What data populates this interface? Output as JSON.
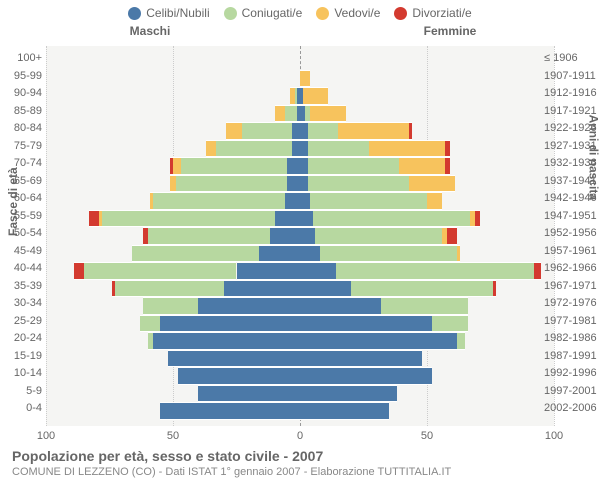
{
  "legend": {
    "items": [
      {
        "label": "Celibi/Nubili",
        "color": "#4b79a8"
      },
      {
        "label": "Coniugati/e",
        "color": "#b7d8a0"
      },
      {
        "label": "Vedovi/e",
        "color": "#f7c35d"
      },
      {
        "label": "Divorziati/e",
        "color": "#d33a2f"
      }
    ]
  },
  "header": {
    "left": "Maschi",
    "right": "Femmine"
  },
  "axes": {
    "left_title": "Fasce di età",
    "right_title": "Anni di nascita",
    "xmax": 100,
    "xticks": [
      100,
      50,
      0,
      50,
      100
    ],
    "background": "#f5f5f3",
    "grid_color": "#cccccc",
    "center_color": "#999999"
  },
  "age_labels": [
    "100+",
    "95-99",
    "90-94",
    "85-89",
    "80-84",
    "75-79",
    "70-74",
    "65-69",
    "60-64",
    "55-59",
    "50-54",
    "45-49",
    "40-44",
    "35-39",
    "30-34",
    "25-29",
    "20-24",
    "15-19",
    "10-14",
    "5-9",
    "0-4"
  ],
  "birth_labels": [
    "≤ 1906",
    "1907-1911",
    "1912-1916",
    "1917-1921",
    "1922-1926",
    "1927-1931",
    "1932-1936",
    "1937-1941",
    "1942-1946",
    "1947-1951",
    "1952-1956",
    "1957-1961",
    "1962-1966",
    "1967-1971",
    "1972-1976",
    "1977-1981",
    "1982-1986",
    "1987-1991",
    "1992-1996",
    "1997-2001",
    "2002-2006"
  ],
  "male": [
    {
      "c": 0,
      "m": 0,
      "w": 0,
      "d": 0
    },
    {
      "c": 0,
      "m": 0,
      "w": 0,
      "d": 0
    },
    {
      "c": 1,
      "m": 1,
      "w": 2,
      "d": 0
    },
    {
      "c": 1,
      "m": 5,
      "w": 4,
      "d": 0
    },
    {
      "c": 3,
      "m": 20,
      "w": 6,
      "d": 0
    },
    {
      "c": 3,
      "m": 30,
      "w": 4,
      "d": 0
    },
    {
      "c": 5,
      "m": 42,
      "w": 3,
      "d": 1
    },
    {
      "c": 5,
      "m": 44,
      "w": 2,
      "d": 0
    },
    {
      "c": 6,
      "m": 52,
      "w": 1,
      "d": 0
    },
    {
      "c": 10,
      "m": 68,
      "w": 1,
      "d": 4
    },
    {
      "c": 12,
      "m": 48,
      "w": 0,
      "d": 2
    },
    {
      "c": 16,
      "m": 50,
      "w": 0,
      "d": 0
    },
    {
      "c": 25,
      "m": 60,
      "w": 0,
      "d": 4
    },
    {
      "c": 30,
      "m": 43,
      "w": 0,
      "d": 1
    },
    {
      "c": 40,
      "m": 22,
      "w": 0,
      "d": 0
    },
    {
      "c": 55,
      "m": 8,
      "w": 0,
      "d": 0
    },
    {
      "c": 58,
      "m": 2,
      "w": 0,
      "d": 0
    },
    {
      "c": 52,
      "m": 0,
      "w": 0,
      "d": 0
    },
    {
      "c": 48,
      "m": 0,
      "w": 0,
      "d": 0
    },
    {
      "c": 40,
      "m": 0,
      "w": 0,
      "d": 0
    },
    {
      "c": 55,
      "m": 0,
      "w": 0,
      "d": 0
    }
  ],
  "female": [
    {
      "c": 0,
      "m": 0,
      "w": 0,
      "d": 0
    },
    {
      "c": 0,
      "m": 0,
      "w": 4,
      "d": 0
    },
    {
      "c": 1,
      "m": 0,
      "w": 10,
      "d": 0
    },
    {
      "c": 2,
      "m": 2,
      "w": 14,
      "d": 0
    },
    {
      "c": 3,
      "m": 12,
      "w": 28,
      "d": 1
    },
    {
      "c": 3,
      "m": 24,
      "w": 30,
      "d": 2
    },
    {
      "c": 3,
      "m": 36,
      "w": 18,
      "d": 2
    },
    {
      "c": 3,
      "m": 40,
      "w": 18,
      "d": 0
    },
    {
      "c": 4,
      "m": 46,
      "w": 6,
      "d": 0
    },
    {
      "c": 5,
      "m": 62,
      "w": 2,
      "d": 2
    },
    {
      "c": 6,
      "m": 50,
      "w": 2,
      "d": 4
    },
    {
      "c": 8,
      "m": 54,
      "w": 1,
      "d": 0
    },
    {
      "c": 14,
      "m": 78,
      "w": 0,
      "d": 3
    },
    {
      "c": 20,
      "m": 56,
      "w": 0,
      "d": 1
    },
    {
      "c": 32,
      "m": 34,
      "w": 0,
      "d": 0
    },
    {
      "c": 52,
      "m": 14,
      "w": 0,
      "d": 0
    },
    {
      "c": 62,
      "m": 3,
      "w": 0,
      "d": 0
    },
    {
      "c": 48,
      "m": 0,
      "w": 0,
      "d": 0
    },
    {
      "c": 52,
      "m": 0,
      "w": 0,
      "d": 0
    },
    {
      "c": 38,
      "m": 0,
      "w": 0,
      "d": 0
    },
    {
      "c": 35,
      "m": 0,
      "w": 0,
      "d": 0
    }
  ],
  "footer": {
    "title": "Popolazione per età, sesso e stato civile - 2007",
    "subtitle": "COMUNE DI LEZZENO (CO) - Dati ISTAT 1° gennaio 2007 - Elaborazione TUTTITALIA.IT"
  }
}
